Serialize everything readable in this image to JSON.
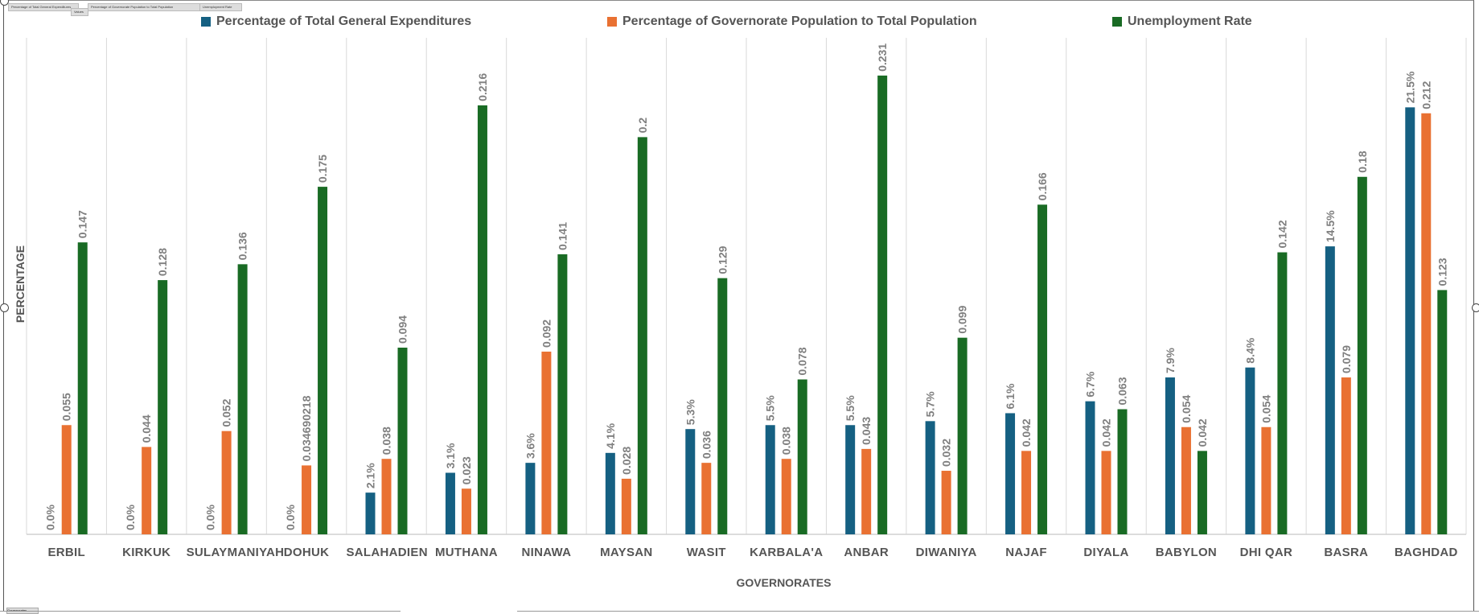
{
  "field_buttons": [
    "Percentage of Total General Expenditures",
    "Values",
    "Percentage of Governorate Population to Total Population",
    "Unemployment Rate"
  ],
  "filter_button": "Governorates",
  "chart_data": {
    "type": "bar",
    "title": "",
    "xlabel": "GOVERNORATES",
    "ylabel": "PERCENTAGE",
    "ylim": [
      0,
      0.25
    ],
    "grid": "vertical category separators",
    "legend_position": "top",
    "categories": [
      "ERBIL",
      "KIRKUK",
      "SULAYMANIYAH",
      "DOHUK",
      "SALAHADIEN",
      "MUTHANA",
      "NINAWA",
      "MAYSAN",
      "WASIT",
      "KARBALA'A",
      "ANBAR",
      "DIWANIYA",
      "NAJAF",
      "DIYALA",
      "BABYLON",
      "DHI QAR",
      "BASRA",
      "BAGHDAD"
    ],
    "series": [
      {
        "name": "Percentage of Total General Expenditures",
        "color": "#156082",
        "values": [
          0,
          0,
          0,
          0,
          0.021,
          0.031,
          0.036,
          0.041,
          0.053,
          0.055,
          0.055,
          0.057,
          0.061,
          0.067,
          0.079,
          0.084,
          0.145,
          0.215
        ],
        "labels": [
          "0.0%",
          "0.0%",
          "0.0%",
          "0.0%",
          "2.1%",
          "3.1%",
          "3.6%",
          "4.1%",
          "5.3%",
          "5.5%",
          "5.5%",
          "5.7%",
          "6.1%",
          "6.7%",
          "7.9%",
          "8.4%",
          "14.5%",
          "21.5%"
        ]
      },
      {
        "name": "Percentage of Governorate Population to Total Population",
        "color": "#E97132",
        "values": [
          0.055,
          0.044,
          0.052,
          0.034690218,
          0.038,
          0.023,
          0.092,
          0.028,
          0.036,
          0.038,
          0.043,
          0.032,
          0.042,
          0.042,
          0.054,
          0.054,
          0.079,
          0.212
        ],
        "labels": [
          "0.055",
          "0.044",
          "0.052",
          "0.034690218",
          "0.038",
          "0.023",
          "0.092",
          "0.028",
          "0.036",
          "0.038",
          "0.043",
          "0.032",
          "0.042",
          "0.042",
          "0.054",
          "0.054",
          "0.079",
          "0.212"
        ]
      },
      {
        "name": "Unemployment Rate",
        "color": "#196B24",
        "values": [
          0.147,
          0.128,
          0.136,
          0.175,
          0.094,
          0.216,
          0.141,
          0.2,
          0.129,
          0.078,
          0.231,
          0.099,
          0.166,
          0.063,
          0.042,
          0.142,
          0.18,
          0.123
        ],
        "labels": [
          "0.147",
          "0.128",
          "0.136",
          "0.175",
          "0.094",
          "0.216",
          "0.141",
          "0.2",
          "0.129",
          "0.078",
          "0.231",
          "0.099",
          "0.166",
          "0.063",
          "0.042",
          "0.142",
          "0.18",
          "0.123"
        ]
      }
    ]
  }
}
